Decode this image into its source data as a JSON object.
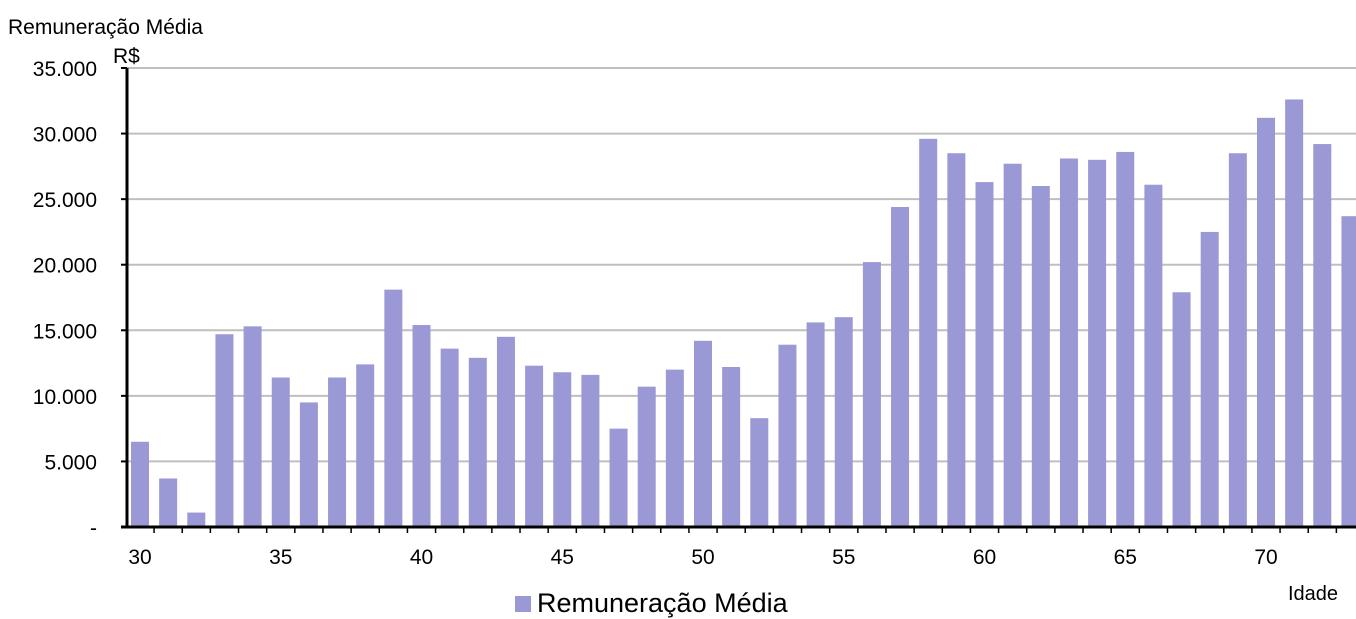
{
  "chart_data": {
    "type": "bar",
    "ylabel": "Remuneração Média",
    "yunit": "R$",
    "xlabel": "Idade",
    "ylim": [
      0,
      35000
    ],
    "yticks": [
      0,
      5000,
      10000,
      15000,
      20000,
      25000,
      30000,
      35000
    ],
    "ytick_labels": [
      "-",
      "5.000",
      "10.000",
      "15.000",
      "20.000",
      "25.000",
      "30.000",
      "35.000"
    ],
    "xticks": [
      30,
      35,
      40,
      45,
      50,
      55,
      60,
      65,
      70
    ],
    "grid": true,
    "legend_position": "bottom-center",
    "colors": {
      "bar": "#9b98d6",
      "grid": "#bfbfbf",
      "axis": "#000000"
    },
    "categories": [
      30,
      31,
      32,
      33,
      34,
      35,
      36,
      37,
      38,
      39,
      40,
      41,
      42,
      43,
      44,
      45,
      46,
      47,
      48,
      49,
      50,
      51,
      52,
      53,
      54,
      55,
      56,
      57,
      58,
      59,
      60,
      61,
      62,
      63,
      64,
      65,
      66,
      67,
      68,
      69,
      70,
      71,
      72,
      73
    ],
    "series": [
      {
        "name": "Remuneração Média",
        "values": [
          6500,
          3700,
          1100,
          14700,
          15300,
          11400,
          9500,
          11400,
          12400,
          18100,
          15400,
          13600,
          12900,
          14500,
          12300,
          11800,
          11600,
          7500,
          10700,
          12000,
          14200,
          12200,
          8300,
          13900,
          15600,
          16000,
          20200,
          24400,
          29600,
          28500,
          26300,
          27700,
          26000,
          28100,
          28000,
          28600,
          26100,
          17900,
          22500,
          28500,
          31200,
          32600,
          29200,
          23700
        ]
      }
    ]
  }
}
